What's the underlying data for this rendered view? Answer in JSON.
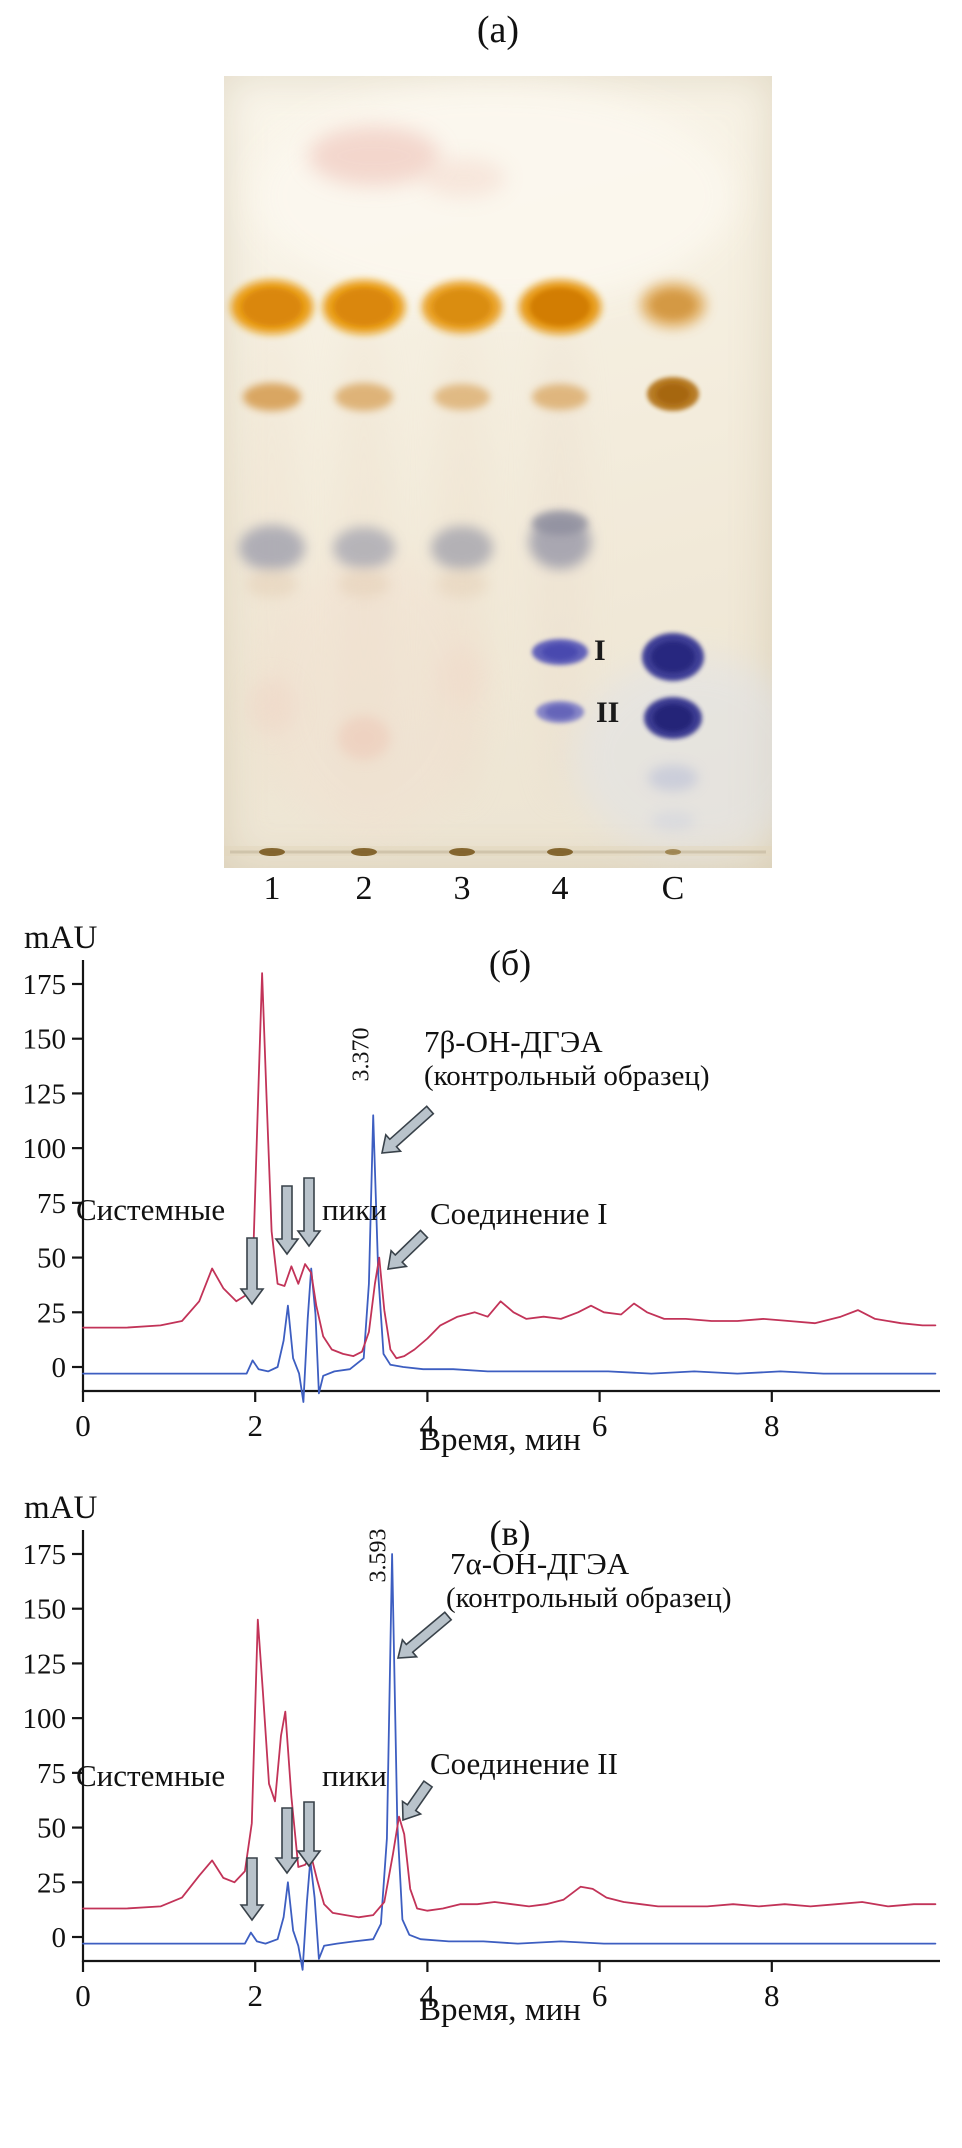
{
  "panel_a": {
    "label": "(а)",
    "lane_labels": [
      "1",
      "2",
      "3",
      "4",
      "С"
    ],
    "spot_labels": [
      "I",
      "II"
    ]
  },
  "chart_data": [
    {
      "type": "line",
      "panel_label": "(б)",
      "ylabel": "mAU",
      "xlabel": "Время, мин",
      "xlim": [
        0,
        9.9
      ],
      "ylim": [
        -11,
        186
      ],
      "x_ticks": [
        "0",
        "2",
        "4",
        "6",
        "8"
      ],
      "y_ticks": [
        "0",
        "25",
        "50",
        "75",
        "100",
        "125",
        "150",
        "175"
      ],
      "grid": false,
      "legend": false,
      "annotations": {
        "peak_rt": "3.370",
        "control_line1": "7β-ОН-ДГЭА",
        "control_line2": "(контрольный образец)",
        "compound": "Соединение I",
        "system_word1": "Системные",
        "system_word2": "пики"
      },
      "series": [
        {
          "name": "7β-ОН-ДГЭА (контрольный образец)",
          "key": "control",
          "color": "#3d5ec1",
          "points": [
            [
              0,
              -3
            ],
            [
              0.6,
              -3
            ],
            [
              1.2,
              -3
            ],
            [
              1.7,
              -3
            ],
            [
              1.9,
              -3
            ],
            [
              1.97,
              3
            ],
            [
              2.04,
              -1
            ],
            [
              2.15,
              -2
            ],
            [
              2.26,
              0
            ],
            [
              2.33,
              12
            ],
            [
              2.38,
              28
            ],
            [
              2.44,
              4
            ],
            [
              2.51,
              -3
            ],
            [
              2.56,
              -16
            ],
            [
              2.61,
              22
            ],
            [
              2.65,
              45
            ],
            [
              2.7,
              24
            ],
            [
              2.74,
              -12
            ],
            [
              2.79,
              -4
            ],
            [
              2.92,
              -2
            ],
            [
              3.1,
              -1
            ],
            [
              3.26,
              4
            ],
            [
              3.32,
              38
            ],
            [
              3.37,
              115
            ],
            [
              3.43,
              42
            ],
            [
              3.49,
              6
            ],
            [
              3.57,
              1
            ],
            [
              3.72,
              0
            ],
            [
              3.95,
              -1
            ],
            [
              4.3,
              -1
            ],
            [
              4.7,
              -2
            ],
            [
              5.1,
              -2
            ],
            [
              5.6,
              -2
            ],
            [
              6.1,
              -2
            ],
            [
              6.6,
              -3
            ],
            [
              7.1,
              -2
            ],
            [
              7.6,
              -3
            ],
            [
              8.1,
              -2
            ],
            [
              8.6,
              -3
            ],
            [
              9.1,
              -3
            ],
            [
              9.6,
              -3
            ],
            [
              9.9,
              -3
            ]
          ]
        },
        {
          "name": "Соединение I",
          "key": "compound",
          "color": "#c23358",
          "points": [
            [
              0,
              18
            ],
            [
              0.5,
              18
            ],
            [
              0.9,
              19
            ],
            [
              1.15,
              21
            ],
            [
              1.35,
              30
            ],
            [
              1.5,
              45
            ],
            [
              1.63,
              36
            ],
            [
              1.78,
              30
            ],
            [
              1.9,
              33
            ],
            [
              1.98,
              55
            ],
            [
              2.04,
              130
            ],
            [
              2.08,
              180
            ],
            [
              2.13,
              125
            ],
            [
              2.19,
              62
            ],
            [
              2.26,
              38
            ],
            [
              2.34,
              37
            ],
            [
              2.42,
              46
            ],
            [
              2.5,
              38
            ],
            [
              2.58,
              47
            ],
            [
              2.65,
              43
            ],
            [
              2.71,
              28
            ],
            [
              2.79,
              14
            ],
            [
              2.89,
              8
            ],
            [
              3.02,
              6
            ],
            [
              3.14,
              5
            ],
            [
              3.24,
              7
            ],
            [
              3.32,
              16
            ],
            [
              3.39,
              38
            ],
            [
              3.44,
              50
            ],
            [
              3.5,
              26
            ],
            [
              3.57,
              8
            ],
            [
              3.64,
              4
            ],
            [
              3.73,
              5
            ],
            [
              3.85,
              8
            ],
            [
              4.0,
              13
            ],
            [
              4.15,
              19
            ],
            [
              4.35,
              23
            ],
            [
              4.55,
              25
            ],
            [
              4.7,
              23
            ],
            [
              4.85,
              30
            ],
            [
              5.0,
              25
            ],
            [
              5.15,
              22
            ],
            [
              5.35,
              23
            ],
            [
              5.55,
              22
            ],
            [
              5.75,
              25
            ],
            [
              5.9,
              28
            ],
            [
              6.05,
              25
            ],
            [
              6.25,
              24
            ],
            [
              6.4,
              29
            ],
            [
              6.55,
              25
            ],
            [
              6.75,
              22
            ],
            [
              7.0,
              22
            ],
            [
              7.3,
              21
            ],
            [
              7.6,
              21
            ],
            [
              7.9,
              22
            ],
            [
              8.2,
              21
            ],
            [
              8.5,
              20
            ],
            [
              8.8,
              23
            ],
            [
              9.0,
              26
            ],
            [
              9.2,
              22
            ],
            [
              9.5,
              20
            ],
            [
              9.75,
              19
            ],
            [
              9.9,
              19
            ]
          ]
        }
      ]
    },
    {
      "type": "line",
      "panel_label": "(в)",
      "ylabel": "mAU",
      "xlabel": "Время, мин",
      "xlim": [
        0,
        9.9
      ],
      "ylim": [
        -11,
        186
      ],
      "x_ticks": [
        "0",
        "2",
        "4",
        "6",
        "8"
      ],
      "y_ticks": [
        "0",
        "25",
        "50",
        "75",
        "100",
        "125",
        "150",
        "175"
      ],
      "grid": false,
      "legend": false,
      "annotations": {
        "peak_rt": "3.593",
        "control_line1": "7α-ОН-ДГЭА",
        "control_line2": "(контрольный образец)",
        "compound": "Соединение II",
        "system_word1": "Системные",
        "system_word2": "пики"
      },
      "series": [
        {
          "name": "7α-ОН-ДГЭА (контрольный образец)",
          "key": "control",
          "color": "#3d5ec1",
          "points": [
            [
              0,
              -3
            ],
            [
              0.6,
              -3
            ],
            [
              1.2,
              -3
            ],
            [
              1.75,
              -3
            ],
            [
              1.88,
              -3
            ],
            [
              1.95,
              2
            ],
            [
              2.02,
              -2
            ],
            [
              2.12,
              -3
            ],
            [
              2.26,
              -1
            ],
            [
              2.33,
              9
            ],
            [
              2.38,
              25
            ],
            [
              2.44,
              3
            ],
            [
              2.5,
              -4
            ],
            [
              2.55,
              -15
            ],
            [
              2.6,
              16
            ],
            [
              2.64,
              35
            ],
            [
              2.69,
              18
            ],
            [
              2.74,
              -10
            ],
            [
              2.8,
              -4
            ],
            [
              2.95,
              -3
            ],
            [
              3.15,
              -2
            ],
            [
              3.37,
              -1
            ],
            [
              3.46,
              6
            ],
            [
              3.53,
              45
            ],
            [
              3.59,
              175
            ],
            [
              3.65,
              52
            ],
            [
              3.71,
              8
            ],
            [
              3.79,
              1
            ],
            [
              3.92,
              -1
            ],
            [
              4.25,
              -2
            ],
            [
              4.65,
              -2
            ],
            [
              5.05,
              -3
            ],
            [
              5.55,
              -2
            ],
            [
              6.05,
              -3
            ],
            [
              6.55,
              -3
            ],
            [
              7.05,
              -3
            ],
            [
              7.55,
              -3
            ],
            [
              8.05,
              -3
            ],
            [
              8.55,
              -3
            ],
            [
              9.05,
              -3
            ],
            [
              9.55,
              -3
            ],
            [
              9.9,
              -3
            ]
          ]
        },
        {
          "name": "Соединение II",
          "key": "compound",
          "color": "#c23358",
          "points": [
            [
              0,
              13
            ],
            [
              0.5,
              13
            ],
            [
              0.9,
              14
            ],
            [
              1.15,
              18
            ],
            [
              1.35,
              28
            ],
            [
              1.5,
              35
            ],
            [
              1.63,
              27
            ],
            [
              1.76,
              25
            ],
            [
              1.88,
              30
            ],
            [
              1.96,
              52
            ],
            [
              2.03,
              145
            ],
            [
              2.09,
              112
            ],
            [
              2.16,
              70
            ],
            [
              2.23,
              62
            ],
            [
              2.3,
              92
            ],
            [
              2.35,
              103
            ],
            [
              2.42,
              64
            ],
            [
              2.5,
              32
            ],
            [
              2.58,
              33
            ],
            [
              2.65,
              37
            ],
            [
              2.72,
              26
            ],
            [
              2.8,
              15
            ],
            [
              2.9,
              11
            ],
            [
              3.05,
              10
            ],
            [
              3.2,
              9
            ],
            [
              3.37,
              10
            ],
            [
              3.5,
              16
            ],
            [
              3.6,
              38
            ],
            [
              3.67,
              55
            ],
            [
              3.73,
              47
            ],
            [
              3.8,
              22
            ],
            [
              3.88,
              13
            ],
            [
              4.0,
              12
            ],
            [
              4.18,
              13
            ],
            [
              4.38,
              15
            ],
            [
              4.58,
              15
            ],
            [
              4.78,
              16
            ],
            [
              4.98,
              15
            ],
            [
              5.18,
              14
            ],
            [
              5.38,
              15
            ],
            [
              5.58,
              17
            ],
            [
              5.78,
              23
            ],
            [
              5.92,
              22
            ],
            [
              6.08,
              18
            ],
            [
              6.28,
              16
            ],
            [
              6.48,
              15
            ],
            [
              6.68,
              14
            ],
            [
              6.95,
              14
            ],
            [
              7.25,
              14
            ],
            [
              7.55,
              15
            ],
            [
              7.85,
              14
            ],
            [
              8.15,
              15
            ],
            [
              8.45,
              14
            ],
            [
              8.75,
              15
            ],
            [
              9.05,
              16
            ],
            [
              9.35,
              14
            ],
            [
              9.65,
              15
            ],
            [
              9.9,
              15
            ]
          ]
        }
      ]
    }
  ]
}
